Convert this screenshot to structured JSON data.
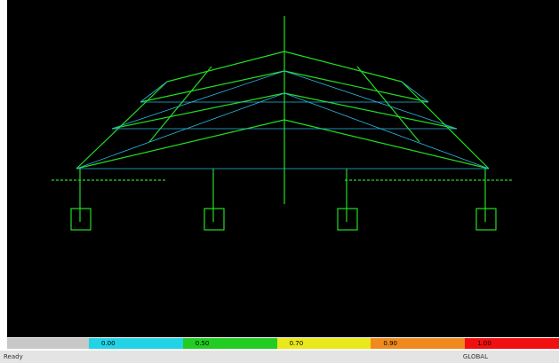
{
  "legend": {
    "stops": [
      {
        "label": "0.00",
        "color": "#22d3e6"
      },
      {
        "label": "0.50",
        "color": "#22cc22"
      },
      {
        "label": "0.70",
        "color": "#e8e81a"
      },
      {
        "label": "0.90",
        "color": "#f08a1e"
      },
      {
        "label": "1.00",
        "color": "#f01010"
      }
    ]
  },
  "status": {
    "left": "Ready",
    "right": "GLOBAL"
  }
}
